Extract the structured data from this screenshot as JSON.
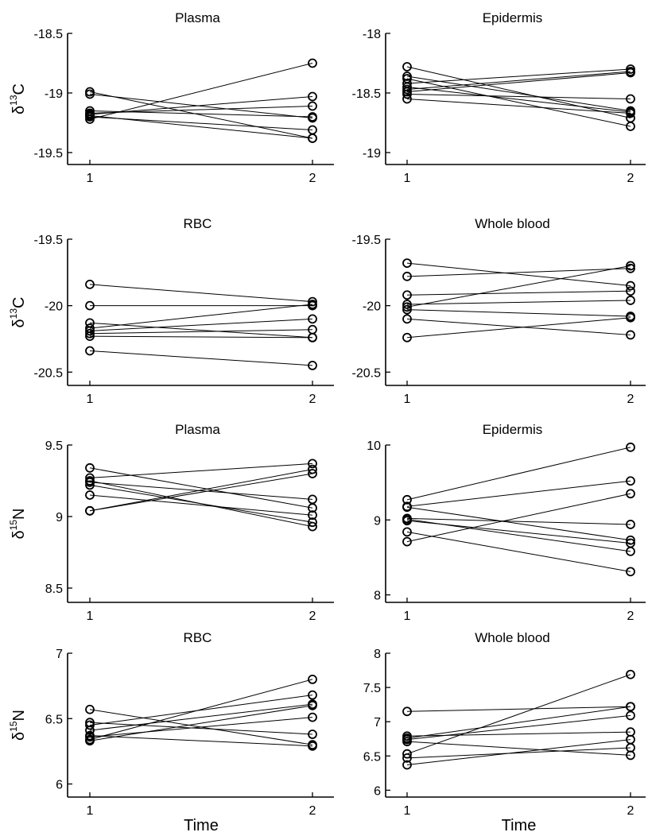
{
  "figure": {
    "xlabel": "Time"
  },
  "chart_data": [
    {
      "type": "line",
      "title": "Plasma",
      "ylabel": {
        "prefix": "δ",
        "sup": "13",
        "suffix": "C"
      },
      "xlabel": "",
      "x": [
        1,
        2
      ],
      "x_ticks": [
        "1",
        "2"
      ],
      "ylim": [
        -19.6,
        -18.5
      ],
      "y_ticks": [
        "-18.5",
        "-19",
        "-19.5"
      ],
      "y_tick_values": [
        -18.5,
        -19,
        -19.5
      ],
      "grid": false,
      "series": [
        {
          "values": [
            -18.99,
            -19.38
          ]
        },
        {
          "values": [
            -19.01,
            -19.21
          ]
        },
        {
          "values": [
            -19.15,
            -19.2
          ]
        },
        {
          "values": [
            -19.17,
            -19.11
          ]
        },
        {
          "values": [
            -19.18,
            -19.03
          ]
        },
        {
          "values": [
            -19.19,
            -19.38
          ]
        },
        {
          "values": [
            -19.2,
            -19.31
          ]
        },
        {
          "values": [
            -19.22,
            -18.75
          ]
        }
      ]
    },
    {
      "type": "line",
      "title": "Epidermis",
      "ylabel": null,
      "xlabel": "",
      "x": [
        1,
        2
      ],
      "x_ticks": [
        "1",
        "2"
      ],
      "ylim": [
        -19.1,
        -18.0
      ],
      "y_ticks": [
        "-18",
        "-18.5",
        "-19"
      ],
      "y_tick_values": [
        -18,
        -18.5,
        -19
      ],
      "grid": false,
      "series": [
        {
          "values": [
            -18.28,
            -18.71
          ]
        },
        {
          "values": [
            -18.36,
            -18.65
          ]
        },
        {
          "values": [
            -18.38,
            -18.78
          ]
        },
        {
          "values": [
            -18.42,
            -18.3
          ]
        },
        {
          "values": [
            -18.45,
            -18.66
          ]
        },
        {
          "values": [
            -18.47,
            -18.32
          ]
        },
        {
          "values": [
            -18.49,
            -18.33
          ]
        },
        {
          "values": [
            -18.51,
            -18.55
          ]
        },
        {
          "values": [
            -18.55,
            -18.67
          ]
        }
      ]
    },
    {
      "type": "line",
      "title": "RBC",
      "ylabel": {
        "prefix": "δ",
        "sup": "13",
        "suffix": "C"
      },
      "xlabel": "",
      "x": [
        1,
        2
      ],
      "x_ticks": [
        "1",
        "2"
      ],
      "ylim": [
        -20.6,
        -19.5
      ],
      "y_ticks": [
        "-19.5",
        "-20",
        "-20.5"
      ],
      "y_tick_values": [
        -19.5,
        -20,
        -20.5
      ],
      "grid": false,
      "series": [
        {
          "values": [
            -19.84,
            -19.97
          ]
        },
        {
          "values": [
            -20.0,
            -20.0
          ]
        },
        {
          "values": [
            -20.13,
            -20.24
          ]
        },
        {
          "values": [
            -20.17,
            -19.99
          ]
        },
        {
          "values": [
            -20.19,
            -20.1
          ]
        },
        {
          "values": [
            -20.21,
            -20.18
          ]
        },
        {
          "values": [
            -20.23,
            -20.24
          ]
        },
        {
          "values": [
            -20.34,
            -20.45
          ]
        }
      ]
    },
    {
      "type": "line",
      "title": "Whole blood",
      "ylabel": null,
      "xlabel": "",
      "x": [
        1,
        2
      ],
      "x_ticks": [
        "1",
        "2"
      ],
      "ylim": [
        -20.6,
        -19.5
      ],
      "y_ticks": [
        "-19.5",
        "-20",
        "-20.5"
      ],
      "y_tick_values": [
        -19.5,
        -20,
        -20.5
      ],
      "grid": false,
      "series": [
        {
          "values": [
            -19.68,
            -19.85
          ]
        },
        {
          "values": [
            -19.78,
            -19.72
          ]
        },
        {
          "values": [
            -19.92,
            -19.89
          ]
        },
        {
          "values": [
            -19.99,
            -19.96
          ]
        },
        {
          "values": [
            -20.01,
            -19.7
          ]
        },
        {
          "values": [
            -20.03,
            -20.08
          ]
        },
        {
          "values": [
            -20.1,
            -20.22
          ]
        },
        {
          "values": [
            -20.24,
            -20.09
          ]
        }
      ]
    },
    {
      "type": "line",
      "title": "Plasma",
      "ylabel": {
        "prefix": "δ",
        "sup": "15",
        "suffix": "N"
      },
      "xlabel": "",
      "x": [
        1,
        2
      ],
      "x_ticks": [
        "1",
        "2"
      ],
      "ylim": [
        8.4,
        9.5
      ],
      "y_ticks": [
        "9.5",
        "9",
        "8.5"
      ],
      "y_tick_values": [
        9.5,
        9,
        8.5
      ],
      "grid": false,
      "series": [
        {
          "values": [
            9.34,
            9.06
          ]
        },
        {
          "values": [
            9.27,
            9.37
          ]
        },
        {
          "values": [
            9.25,
            8.93
          ]
        },
        {
          "values": [
            9.24,
            9.12
          ]
        },
        {
          "values": [
            9.22,
            8.96
          ]
        },
        {
          "values": [
            9.15,
            9.01
          ]
        },
        {
          "values": [
            9.04,
            9.33
          ]
        },
        {
          "values": [
            9.04,
            9.3
          ]
        }
      ]
    },
    {
      "type": "line",
      "title": "Epidermis",
      "ylabel": null,
      "xlabel": "",
      "x": [
        1,
        2
      ],
      "x_ticks": [
        "1",
        "2"
      ],
      "ylim": [
        7.9,
        10.0
      ],
      "y_ticks": [
        "10",
        "9",
        "8"
      ],
      "y_tick_values": [
        10,
        9,
        8
      ],
      "grid": false,
      "series": [
        {
          "values": [
            9.27,
            9.97
          ]
        },
        {
          "values": [
            9.18,
            9.52
          ]
        },
        {
          "values": [
            9.17,
            8.73
          ]
        },
        {
          "values": [
            9.02,
            8.94
          ]
        },
        {
          "values": [
            9.01,
            8.58
          ]
        },
        {
          "values": [
            8.99,
            8.69
          ]
        },
        {
          "values": [
            8.84,
            8.31
          ]
        },
        {
          "values": [
            8.71,
            9.35
          ]
        }
      ]
    },
    {
      "type": "line",
      "title": "RBC",
      "ylabel": {
        "prefix": "δ",
        "sup": "15",
        "suffix": "N"
      },
      "xlabel": "Time",
      "x": [
        1,
        2
      ],
      "x_ticks": [
        "1",
        "2"
      ],
      "ylim": [
        5.9,
        7.0
      ],
      "y_ticks": [
        "7",
        "6.5",
        "6"
      ],
      "y_tick_values": [
        7,
        6.5,
        6
      ],
      "grid": false,
      "series": [
        {
          "values": [
            6.57,
            6.3
          ]
        },
        {
          "values": [
            6.47,
            6.38
          ]
        },
        {
          "values": [
            6.45,
            6.68
          ]
        },
        {
          "values": [
            6.41,
            6.61
          ]
        },
        {
          "values": [
            6.37,
            6.29
          ]
        },
        {
          "values": [
            6.36,
            6.51
          ]
        },
        {
          "values": [
            6.34,
            6.8
          ]
        },
        {
          "values": [
            6.33,
            6.6
          ]
        }
      ]
    },
    {
      "type": "line",
      "title": "Whole blood",
      "ylabel": null,
      "xlabel": "Time",
      "x": [
        1,
        2
      ],
      "x_ticks": [
        "1",
        "2"
      ],
      "ylim": [
        5.9,
        8.0
      ],
      "y_ticks": [
        "8",
        "7.5",
        "7",
        "6.5",
        "6"
      ],
      "y_tick_values": [
        8,
        7.5,
        7,
        6.5,
        6
      ],
      "grid": false,
      "series": [
        {
          "values": [
            7.15,
            7.22
          ]
        },
        {
          "values": [
            6.79,
            6.85
          ]
        },
        {
          "values": [
            6.76,
            7.22
          ]
        },
        {
          "values": [
            6.74,
            7.09
          ]
        },
        {
          "values": [
            6.71,
            6.51
          ]
        },
        {
          "values": [
            6.53,
            7.69
          ]
        },
        {
          "values": [
            6.47,
            6.62
          ]
        },
        {
          "values": [
            6.37,
            6.74
          ]
        }
      ]
    }
  ]
}
